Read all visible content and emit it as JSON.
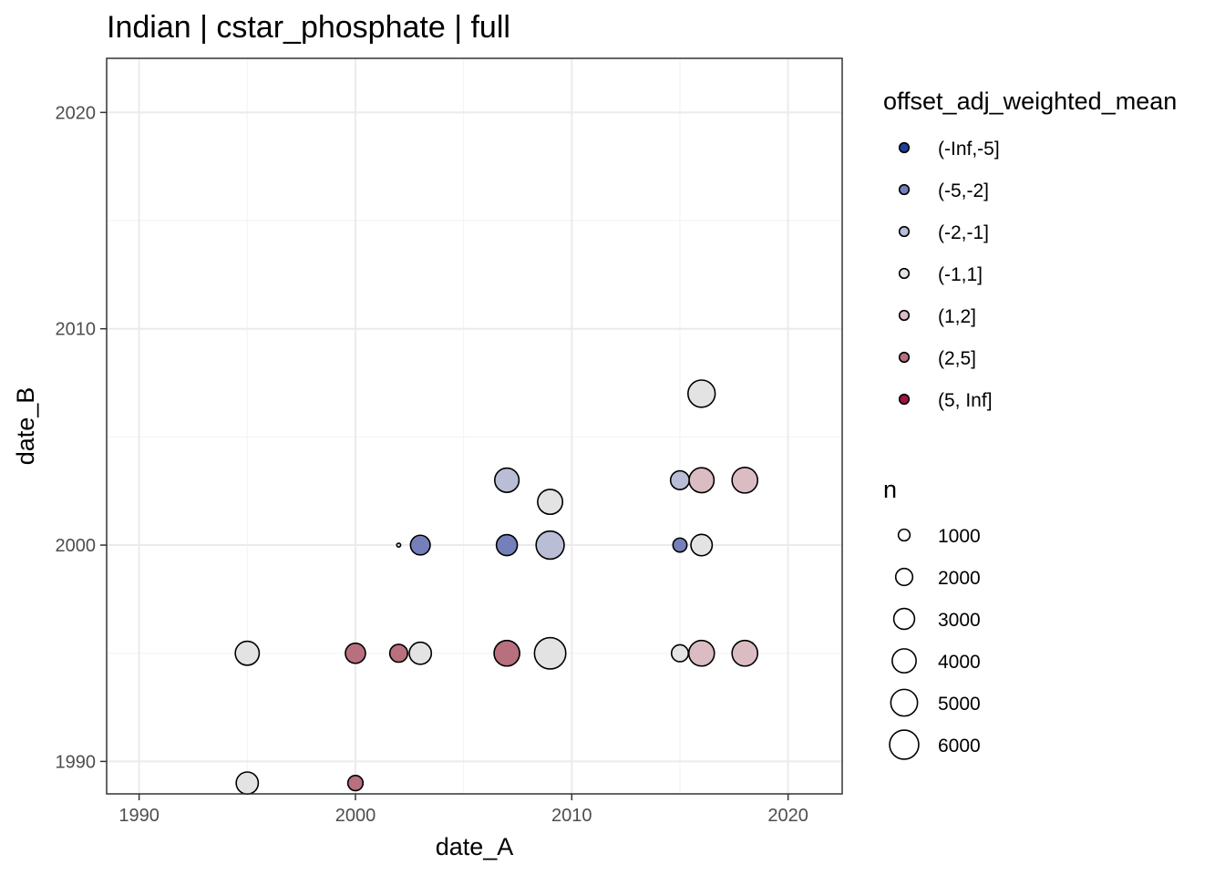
{
  "chart_data": {
    "type": "scatter",
    "title": "Indian | cstar_phosphate | full",
    "xlabel": "date_A",
    "ylabel": "date_B",
    "xlim": [
      1988.5,
      2022.5
    ],
    "ylim": [
      1988.5,
      2022.5
    ],
    "x_ticks": [
      1990,
      2000,
      2010,
      2020
    ],
    "y_ticks": [
      1990,
      2000,
      2010,
      2020
    ],
    "x_tick_labels": [
      "1990",
      "2000",
      "2010",
      "2020"
    ],
    "y_tick_labels": [
      "1990",
      "2000",
      "2010",
      "2020"
    ],
    "grid": true,
    "legend_position": "right",
    "color_legend": {
      "title": "offset_adj_weighted_mean",
      "entries": [
        {
          "label": "(-Inf,-5]",
          "color": "#1d3f9a"
        },
        {
          "label": "(-5,-2]",
          "color": "#7580ba"
        },
        {
          "label": "(-2,-1]",
          "color": "#babdd6"
        },
        {
          "label": "(-1,1]",
          "color": "#e3e3e3"
        },
        {
          "label": "(1,2]",
          "color": "#dbbcc3"
        },
        {
          "label": "(2,5]",
          "color": "#b86f7e"
        },
        {
          "label": "(5, Inf]",
          "color": "#a0143d"
        }
      ]
    },
    "size_legend": {
      "title": "n",
      "entries": [
        {
          "label": "1000",
          "value": 1000
        },
        {
          "label": "2000",
          "value": 2000
        },
        {
          "label": "3000",
          "value": 3000
        },
        {
          "label": "4000",
          "value": 4000
        },
        {
          "label": "5000",
          "value": 5000
        },
        {
          "label": "6000",
          "value": 6000
        }
      ]
    },
    "points": [
      {
        "x": 1995,
        "y": 1989,
        "n": 3000,
        "bin": "(-1,1]"
      },
      {
        "x": 2000,
        "y": 1989,
        "n": 1500,
        "bin": "(2,5]"
      },
      {
        "x": 1995,
        "y": 1995,
        "n": 3500,
        "bin": "(-1,1]"
      },
      {
        "x": 2000,
        "y": 1995,
        "n": 2500,
        "bin": "(2,5]"
      },
      {
        "x": 2002,
        "y": 1995,
        "n": 2000,
        "bin": "(2,5]"
      },
      {
        "x": 2003,
        "y": 1995,
        "n": 3000,
        "bin": "(-1,1]"
      },
      {
        "x": 2007,
        "y": 1995,
        "n": 4000,
        "bin": "(2,5]"
      },
      {
        "x": 2009,
        "y": 1995,
        "n": 6000,
        "bin": "(-1,1]"
      },
      {
        "x": 2015,
        "y": 1995,
        "n": 1800,
        "bin": "(-1,1]"
      },
      {
        "x": 2016,
        "y": 1995,
        "n": 4000,
        "bin": "(1,2]"
      },
      {
        "x": 2018,
        "y": 1995,
        "n": 4000,
        "bin": "(1,2]"
      },
      {
        "x": 2002,
        "y": 2000,
        "n": 400,
        "bin": "(-1,1]"
      },
      {
        "x": 2003,
        "y": 2000,
        "n": 2400,
        "bin": "(-5,-2]"
      },
      {
        "x": 2007,
        "y": 2000,
        "n": 2700,
        "bin": "(-5,-2]"
      },
      {
        "x": 2009,
        "y": 2000,
        "n": 4800,
        "bin": "(-2,-1]"
      },
      {
        "x": 2015,
        "y": 2000,
        "n": 1300,
        "bin": "(-5,-2]"
      },
      {
        "x": 2016,
        "y": 2000,
        "n": 2800,
        "bin": "(-1,1]"
      },
      {
        "x": 2009,
        "y": 2002,
        "n": 3800,
        "bin": "(-1,1]"
      },
      {
        "x": 2007,
        "y": 2003,
        "n": 3600,
        "bin": "(-2,-1]"
      },
      {
        "x": 2015,
        "y": 2003,
        "n": 2200,
        "bin": "(-2,-1]"
      },
      {
        "x": 2016,
        "y": 2003,
        "n": 3800,
        "bin": "(1,2]"
      },
      {
        "x": 2018,
        "y": 2003,
        "n": 4000,
        "bin": "(1,2]"
      },
      {
        "x": 2016,
        "y": 2007,
        "n": 4500,
        "bin": "(-1,1]"
      }
    ]
  }
}
